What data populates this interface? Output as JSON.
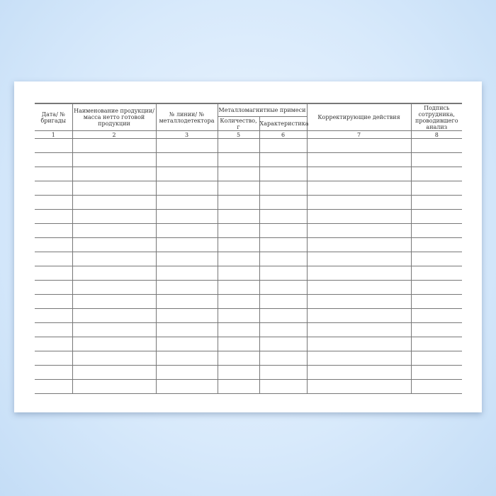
{
  "journal": {
    "columns": {
      "date": "Дата/ № бригады",
      "product": "Наименование продукции/ масса нетто готовой продукции",
      "line": "№ линии/ № металлодетектора",
      "impurities": "Металломагнитные примеси",
      "quantity": "Количество, г",
      "characteristic": "Характеристика",
      "actions": "Корректирующие действия",
      "signature": "Подпись сотрудника, проводившего анализ"
    },
    "column_numbers": [
      "1",
      "2",
      "3",
      "5",
      "6",
      "7",
      "8"
    ],
    "empty_rows": 18
  }
}
